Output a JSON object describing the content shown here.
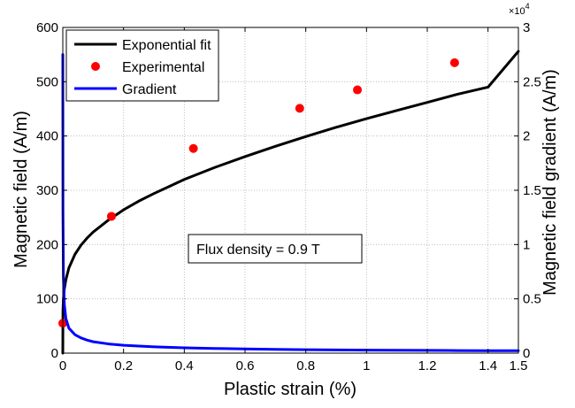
{
  "chart_data": {
    "type": "line",
    "xlabel": "Plastic strain (%)",
    "ylabel": "Magnetic field (A/m)",
    "y2label": "Magnetic field gradient (A/m)",
    "xlim": [
      0,
      1.5
    ],
    "ylim": [
      0,
      600
    ],
    "y2lim": [
      0,
      30000
    ],
    "y2_multiplier_label": "×10",
    "y2_multiplier_exp": "4",
    "x_ticks": [
      "0",
      "0.2",
      "0.4",
      "0.6",
      "0.8",
      "1",
      "1.2",
      "1.4",
      "1.5"
    ],
    "x_tick_values": [
      0,
      0.2,
      0.4,
      0.6,
      0.8,
      1.0,
      1.2,
      1.4,
      1.5
    ],
    "y_ticks": [
      "0",
      "100",
      "200",
      "300",
      "400",
      "500",
      "600"
    ],
    "y_tick_values": [
      0,
      100,
      200,
      300,
      400,
      500,
      600
    ],
    "y2_ticks": [
      "0",
      "0.5",
      "1",
      "1.5",
      "2",
      "2.5",
      "3"
    ],
    "y2_tick_values": [
      0,
      5000,
      10000,
      15000,
      20000,
      25000,
      30000
    ],
    "grid": true,
    "legend_position": "top-left",
    "annotation": "Flux density = 0.9 T",
    "series": [
      {
        "name": "Exponential fit",
        "style": "line",
        "color": "#000000",
        "axis": "left",
        "x": [
          0.0,
          0.0005,
          0.002,
          0.005,
          0.01,
          0.02,
          0.04,
          0.06,
          0.08,
          0.1,
          0.15,
          0.2,
          0.25,
          0.3,
          0.35,
          0.4,
          0.45,
          0.5,
          0.6,
          0.7,
          0.8,
          0.9,
          1.0,
          1.1,
          1.2,
          1.3,
          1.4,
          1.5
        ],
        "y": [
          0,
          78,
          100,
          118,
          135,
          157,
          182,
          199,
          212,
          223,
          245,
          264,
          280,
          294,
          307,
          320,
          331,
          342,
          362,
          381,
          399,
          416,
          432,
          447,
          462,
          477,
          490,
          556
        ]
      },
      {
        "name": "Experimental",
        "style": "markers",
        "color": "#ff0000",
        "axis": "left",
        "x": [
          0.0,
          0.16,
          0.43,
          0.78,
          0.97,
          1.29
        ],
        "y": [
          55,
          252,
          377,
          451,
          485,
          535
        ]
      },
      {
        "name": "Gradient",
        "style": "line",
        "color": "#0000ff",
        "axis": "right",
        "x": [
          0.0,
          0.0005,
          0.002,
          0.005,
          0.01,
          0.02,
          0.04,
          0.06,
          0.08,
          0.1,
          0.15,
          0.2,
          0.3,
          0.4,
          0.5,
          0.6,
          0.7,
          0.8,
          0.9,
          1.0,
          1.1,
          1.2,
          1.3,
          1.4,
          1.5
        ],
        "y": [
          27500,
          13000,
          7000,
          4500,
          3200,
          2300,
          1700,
          1400,
          1200,
          1050,
          850,
          720,
          580,
          490,
          430,
          385,
          350,
          320,
          300,
          280,
          265,
          250,
          238,
          228,
          220
        ]
      }
    ]
  }
}
